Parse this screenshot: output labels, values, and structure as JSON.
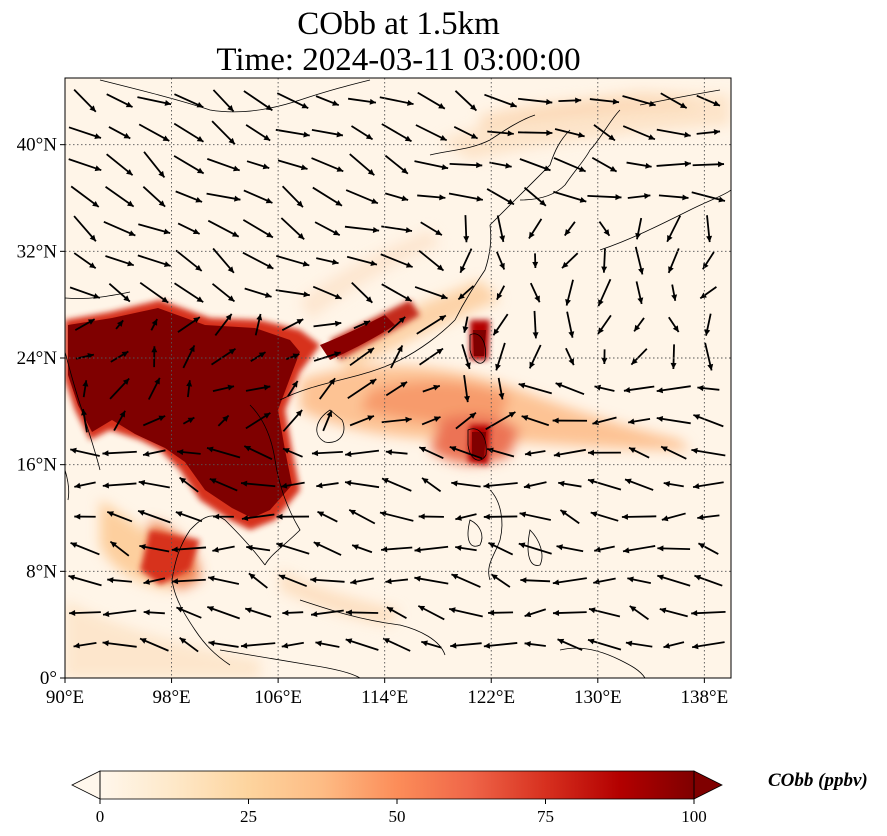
{
  "title": {
    "line1": "CObb at 1.5km",
    "line2": "Time: 2024-03-11 03:00:00"
  },
  "map": {
    "lon_range": [
      90,
      140
    ],
    "lat_range": [
      0,
      45
    ],
    "lon_ticks": [
      "90°E",
      "98°E",
      "106°E",
      "114°E",
      "122°E",
      "130°E",
      "138°E"
    ],
    "lon_tick_values": [
      90,
      98,
      106,
      114,
      122,
      130,
      138
    ],
    "lat_ticks": [
      "0°",
      "8°N",
      "16°N",
      "24°N",
      "32°N",
      "40°N"
    ],
    "lat_tick_values": [
      0,
      8,
      16,
      24,
      32,
      40
    ],
    "gridlines": true,
    "field": "CObb concentration (filled colour), wind vectors (arrows)"
  },
  "colorbar": {
    "label": "CObb (ppbv)",
    "ticks": [
      "0",
      "25",
      "50",
      "75",
      "100"
    ],
    "tick_values": [
      0,
      25,
      50,
      75,
      100
    ],
    "colormap": "OrRd",
    "extend": "both",
    "colors": [
      "#fff7ec",
      "#fee8c8",
      "#fdd49e",
      "#fdbb84",
      "#fc8d59",
      "#ef6548",
      "#d7301f",
      "#b30000",
      "#7f0000"
    ]
  }
}
